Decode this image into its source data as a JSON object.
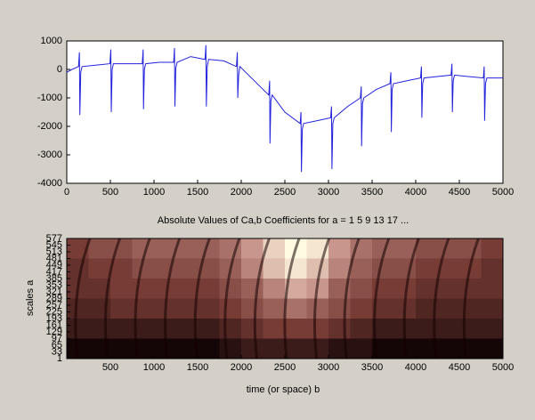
{
  "chart_data": [
    {
      "type": "line",
      "x": [
        0,
        60,
        135,
        145,
        150,
        160,
        175,
        330,
        495,
        505,
        510,
        520,
        535,
        700,
        865,
        875,
        880,
        890,
        905,
        1060,
        1225,
        1235,
        1240,
        1250,
        1265,
        1420,
        1585,
        1595,
        1600,
        1610,
        1625,
        1800,
        1945,
        1955,
        1960,
        1970,
        1985,
        2150,
        2315,
        2325,
        2330,
        2340,
        2355,
        2500,
        2675,
        2685,
        2690,
        2700,
        2715,
        2870,
        3025,
        3035,
        3040,
        3050,
        3065,
        3220,
        3365,
        3375,
        3380,
        3390,
        3405,
        3550,
        3705,
        3715,
        3720,
        3730,
        3745,
        3900,
        4055,
        4065,
        4070,
        4080,
        4095,
        4250,
        4405,
        4415,
        4420,
        4430,
        4445,
        4600,
        4775,
        4785,
        4790,
        4800,
        4815,
        5000
      ],
      "values": [
        -100,
        0,
        100,
        600,
        -1600,
        -100,
        100,
        150,
        200,
        700,
        -1500,
        0,
        200,
        200,
        200,
        700,
        -1400,
        0,
        200,
        250,
        250,
        750,
        -1300,
        50,
        250,
        450,
        350,
        850,
        -1300,
        100,
        350,
        300,
        100,
        600,
        -1000,
        -200,
        100,
        -400,
        -900,
        -400,
        -2600,
        -1100,
        -900,
        -1500,
        -1900,
        -1500,
        -3600,
        -2100,
        -1900,
        -1800,
        -1700,
        -1300,
        -3500,
        -1900,
        -1700,
        -1300,
        -1000,
        -600,
        -2700,
        -1200,
        -1000,
        -700,
        -500,
        -100,
        -2200,
        -700,
        -500,
        -400,
        -300,
        100,
        -1700,
        -500,
        -300,
        -250,
        -200,
        200,
        -1500,
        -400,
        -200,
        -250,
        -300,
        100,
        -1800,
        -500,
        -300,
        -300
      ],
      "color": "#2222dd",
      "xlim": [
        0,
        5000
      ],
      "xticks": [
        0,
        500,
        1000,
        1500,
        2000,
        2500,
        3000,
        3500,
        4000,
        4500,
        5000
      ],
      "ylim": [
        -4000,
        1000
      ],
      "yticks": [
        1000,
        0,
        -1000,
        -2000,
        -3000,
        -4000
      ]
    },
    {
      "type": "heatmap",
      "title": "Absolute Values of Ca,b Coefficients for a =  1 5 9 13 17 ...",
      "xlabel": "time (or space) b",
      "ylabel": "scales a",
      "xlim": [
        0,
        5000
      ],
      "xticks": [
        500,
        1000,
        1500,
        2000,
        2500,
        3000,
        3500,
        4000,
        4500,
        5000
      ],
      "ylim": [
        1,
        577
      ],
      "yticks": [
        577,
        545,
        513,
        481,
        449,
        417,
        385,
        353,
        321,
        289,
        257,
        225,
        193,
        161,
        129,
        97,
        65,
        33,
        1
      ],
      "z": [
        [
          45,
          50,
          50,
          55,
          55,
          55,
          55,
          60,
          70,
          85,
          95,
          90,
          70,
          60,
          55,
          55,
          50,
          50,
          50,
          45
        ],
        [
          40,
          45,
          45,
          50,
          50,
          50,
          50,
          55,
          65,
          80,
          90,
          80,
          65,
          55,
          50,
          50,
          45,
          45,
          45,
          40
        ],
        [
          40,
          40,
          45,
          45,
          45,
          45,
          45,
          50,
          55,
          65,
          75,
          70,
          55,
          50,
          45,
          45,
          40,
          40,
          40,
          40
        ],
        [
          35,
          35,
          40,
          40,
          40,
          40,
          40,
          45,
          50,
          55,
          60,
          55,
          50,
          45,
          40,
          40,
          35,
          35,
          35,
          35
        ],
        [
          30,
          30,
          30,
          30,
          30,
          30,
          30,
          35,
          40,
          45,
          45,
          45,
          40,
          35,
          30,
          30,
          30,
          30,
          30,
          30
        ],
        [
          20,
          20,
          20,
          20,
          20,
          20,
          20,
          25,
          30,
          30,
          30,
          30,
          25,
          25,
          20,
          20,
          20,
          20,
          20,
          20
        ]
      ]
    }
  ]
}
